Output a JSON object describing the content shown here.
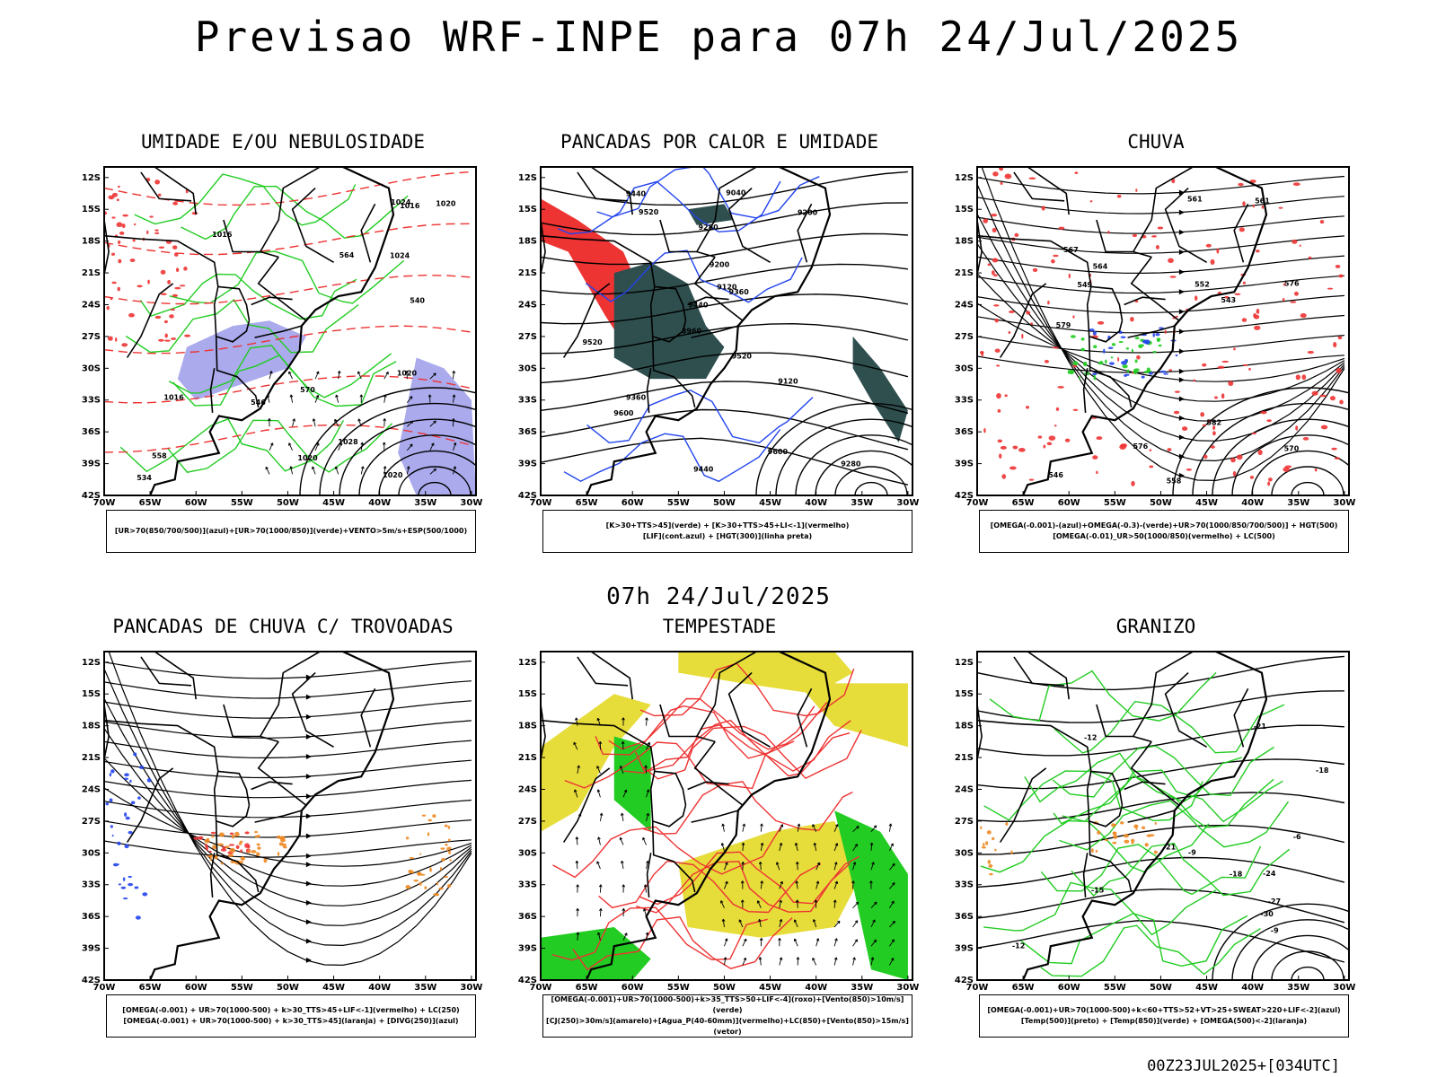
{
  "title": "Previsao WRF-INPE  para 07h 24/Jul/2025",
  "mid_title": "07h 24/Jul/2025",
  "footer": "00Z23JUL2025+[034UTC]",
  "axes": {
    "lat_labels": [
      "12S",
      "15S",
      "18S",
      "21S",
      "24S",
      "27S",
      "30S",
      "33S",
      "36S",
      "39S",
      "42S"
    ],
    "lon_labels": [
      "70W",
      "65W",
      "60W",
      "55W",
      "50W",
      "45W",
      "40W",
      "35W",
      "30W"
    ]
  },
  "colors": {
    "humidity_blue": "#9b9bea",
    "green": "#22cc22",
    "red": "#ee3333",
    "dark_teal": "#2f4f4f",
    "blue": "#2244ee",
    "orange": "#ee8822",
    "yellow": "#e6dc3a"
  },
  "panels": [
    {
      "id": "umidade",
      "title": "UMIDADE E/OU NEBULOSIDADE",
      "legend": [
        "[UR>70(850/700/500)](azul)+[UR>70(1000/850)](verde)+VENTO>5m/s+ESP(500/1000)"
      ],
      "labels": [
        {
          "t": "1016"
        },
        {
          "t": "1016"
        },
        {
          "t": "1020"
        },
        {
          "t": "1020"
        },
        {
          "t": "1024"
        },
        {
          "t": "1020"
        },
        {
          "t": "1024"
        },
        {
          "t": "1020"
        },
        {
          "t": "1028"
        },
        {
          "t": "1016"
        },
        {
          "t": "570"
        },
        {
          "t": "564"
        },
        {
          "t": "558"
        },
        {
          "t": "546"
        },
        {
          "t": "540"
        },
        {
          "t": "534"
        }
      ]
    },
    {
      "id": "pancadas-calor",
      "title": "PANCADAS POR CALOR E UMIDADE",
      "legend": [
        "[K>30+TTS>45](verde) + [K>30+TTS>45+LI<-1](vermelho)",
        "[LIF](cont.azul) + [HGT(300)](linha preta)"
      ],
      "labels": [
        {
          "t": "9600"
        },
        {
          "t": "9600"
        },
        {
          "t": "9520"
        },
        {
          "t": "9520"
        },
        {
          "t": "9520"
        },
        {
          "t": "9440"
        },
        {
          "t": "9440"
        },
        {
          "t": "9440"
        },
        {
          "t": "9360"
        },
        {
          "t": "9360"
        },
        {
          "t": "9280"
        },
        {
          "t": "9280"
        },
        {
          "t": "9200"
        },
        {
          "t": "9120"
        },
        {
          "t": "9040"
        },
        {
          "t": "8960"
        },
        {
          "t": "9200"
        },
        {
          "t": "9120"
        }
      ]
    },
    {
      "id": "chuva",
      "title": "CHUVA",
      "legend": [
        "[OMEGA(-0.001)-(azul)+OMEGA(-0.3)-(verde)+UR>70(1000/850/700/500)] + HGT(500)",
        "[OMEGA(-0.01)_UR>50(1000/850)(vermelho) + LC(500)"
      ],
      "labels": [
        {
          "t": "582"
        },
        {
          "t": "579"
        },
        {
          "t": "576"
        },
        {
          "t": "576"
        },
        {
          "t": "570"
        },
        {
          "t": "567"
        },
        {
          "t": "564"
        },
        {
          "t": "561"
        },
        {
          "t": "558"
        },
        {
          "t": "552"
        },
        {
          "t": "549"
        },
        {
          "t": "546"
        },
        {
          "t": "543"
        },
        {
          "t": "561"
        }
      ]
    },
    {
      "id": "pancadas-trovoadas",
      "title": "PANCADAS DE CHUVA C/ TROVOADAS",
      "legend": [
        "[OMEGA(-0.001) + UR>70(1000-500) + k>30_TTS>45+LIF<-1](vermelho) + LC(250)",
        "[OMEGA(-0.001) + UR>70(1000-500) + k>30_TTS>45](laranja) + [DIVG(250)](azul)"
      ],
      "labels": []
    },
    {
      "id": "tempestade",
      "title": "TEMPESTADE",
      "legend": [
        "[OMEGA(-0.001)+UR>70(1000-500)+k>35_TTS>50+LIF<-4](roxo)+[Vento(850)>10m/s](verde)",
        "[CJ(250)>30m/s](amarelo)+[Agua_P(40-60mm)](vermelho)+LC(850)+[Vento(850)>15m/s](vetor)"
      ],
      "labels": []
    },
    {
      "id": "granizo",
      "title": "GRANIZO",
      "legend": [
        "[OMEGA(-0.001)+UR>70(1000-500)+k<60+TTS>52+VT>25+SWEAT>220+LIF<-2](azul)",
        "[Temp(500)](preto) + [Temp(850)](verde) + [OMEGA(500)<-2](laranja)"
      ],
      "labels": [
        {
          "t": "-9"
        },
        {
          "t": "-12"
        },
        {
          "t": "-12"
        },
        {
          "t": "-15"
        },
        {
          "t": "-18"
        },
        {
          "t": "-18"
        },
        {
          "t": "-21"
        },
        {
          "t": "-21"
        },
        {
          "t": "-24"
        },
        {
          "t": "-27"
        },
        {
          "t": "-30"
        },
        {
          "t": "-6"
        },
        {
          "t": "-9"
        }
      ]
    }
  ]
}
